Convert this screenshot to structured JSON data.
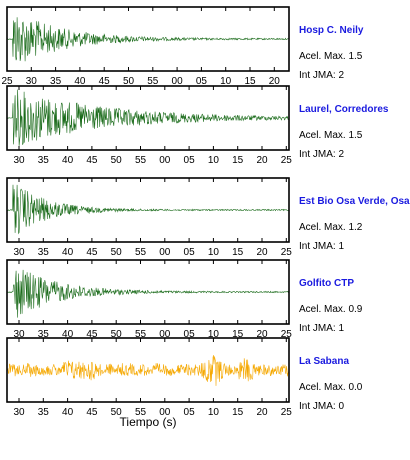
{
  "chart_data": {
    "type": "line",
    "xlabel": "Tiempo (s)",
    "panels": [
      {
        "station": "Hosp C. Neily",
        "accel_label": "Acel. Max. 1.5",
        "int_label": "Int JMA: 2",
        "color": "#1a6b1a",
        "signal_onset_fraction": 0.02,
        "tick_labels": [
          "25",
          "30",
          "35",
          "40",
          "45",
          "50",
          "55",
          "00",
          "05",
          "10",
          "15",
          "20"
        ]
      },
      {
        "station": "Laurel, Corredores",
        "accel_label": "Acel. Max. 1.5",
        "int_label": "Int JMA: 2",
        "color": "#1a6b1a",
        "signal_onset_fraction": 0.02,
        "tick_labels": [
          "30",
          "35",
          "40",
          "45",
          "50",
          "55",
          "00",
          "05",
          "10",
          "15",
          "20",
          "25"
        ]
      },
      {
        "station": "Est Bio Osa Verde, Osa",
        "accel_label": "Acel. Max. 1.2",
        "int_label": "Int JMA: 1",
        "color": "#1a6b1a",
        "signal_onset_fraction": 0.02,
        "tick_labels": [
          "30",
          "35",
          "40",
          "45",
          "50",
          "55",
          "00",
          "05",
          "10",
          "15",
          "20",
          "25"
        ]
      },
      {
        "station": "Golfito CTP",
        "accel_label": "Acel. Max. 0.9",
        "int_label": "Int JMA: 1",
        "color": "#1a6b1a",
        "signal_onset_fraction": 0.02,
        "tick_labels": [
          "30",
          "35",
          "40",
          "45",
          "50",
          "55",
          "00",
          "05",
          "10",
          "15",
          "20",
          "25"
        ]
      },
      {
        "station": "La Sabana",
        "accel_label": "Acel. Max. 0.0",
        "int_label": "Int JMA: 0",
        "color": "#f5a800",
        "signal_onset_fraction": 0.0,
        "tick_labels": [
          "30",
          "35",
          "40",
          "45",
          "50",
          "55",
          "00",
          "05",
          "10",
          "15",
          "20",
          "25"
        ]
      }
    ]
  }
}
